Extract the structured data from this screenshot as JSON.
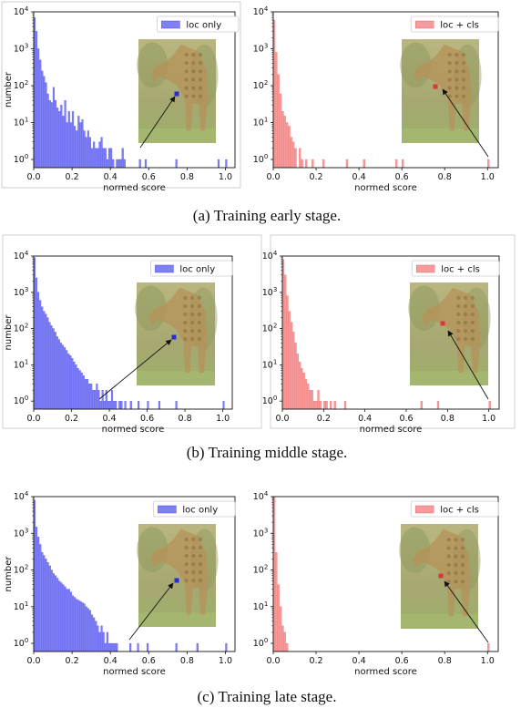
{
  "captions": [
    "(a) Training early stage.",
    "(b) Training middle stage.",
    "(c) Training late stage."
  ],
  "colors": {
    "loc_only": "#6a6af5",
    "loc_cls": "#f58a8a",
    "loc_only_edge": "#4b4bea",
    "loc_cls_edge": "#ee6a6a"
  },
  "chart_data": [
    {
      "type": "bar",
      "stage": "early",
      "legend": "loc only",
      "color": "#6a6af5",
      "xlabel": "normed score",
      "ylabel": "number",
      "xlim": [
        0,
        1.05
      ],
      "ylim": [
        0.6,
        10000
      ],
      "yscale": "log",
      "x_ticks": [
        "0.0",
        "0.2",
        "0.4",
        "0.6",
        "0.8",
        "1.0"
      ],
      "y_ticks": [
        "10^0",
        "10^1",
        "10^2",
        "10^3",
        "10^4"
      ],
      "bin_width": 0.01,
      "counts": [
        7000,
        3000,
        1000,
        500,
        250,
        180,
        120,
        60,
        40,
        35,
        90,
        40,
        25,
        20,
        30,
        15,
        40,
        10,
        20,
        10,
        20,
        8,
        6,
        15,
        10,
        12,
        6,
        4,
        6,
        4,
        2,
        3,
        2,
        2,
        3,
        4,
        2,
        2,
        1,
        2,
        2,
        1,
        0,
        1,
        1,
        1,
        2,
        1,
        0,
        0,
        0,
        0,
        0,
        0,
        0,
        1,
        0,
        0,
        1,
        0,
        0,
        0,
        0,
        0,
        0,
        0,
        0,
        0,
        0,
        0,
        0,
        0,
        0,
        0,
        1,
        0,
        0,
        0,
        0,
        0,
        0,
        0,
        0,
        0,
        0,
        0,
        0,
        0,
        0,
        0,
        0,
        0,
        0,
        0,
        0,
        0,
        1,
        0,
        0,
        0,
        1
      ]
    },
    {
      "type": "bar",
      "stage": "early",
      "legend": "loc + cls",
      "color": "#f58a8a",
      "xlabel": "normed score",
      "ylabel": "",
      "xlim": [
        0,
        1.05
      ],
      "ylim": [
        0.6,
        10000
      ],
      "yscale": "log",
      "x_ticks": [
        "0.0",
        "0.2",
        "0.4",
        "0.6",
        "0.8",
        "1.0"
      ],
      "y_ticks": [
        "10^0",
        "10^1",
        "10^2",
        "10^3",
        "10^4"
      ],
      "bin_width": 0.01,
      "counts": [
        6000,
        800,
        200,
        60,
        20,
        15,
        10,
        8,
        4,
        3,
        2,
        0,
        2,
        1,
        0,
        1,
        0,
        0,
        1,
        0,
        0,
        0,
        0,
        1,
        0,
        0,
        0,
        0,
        0,
        0,
        0,
        0,
        0,
        0,
        1,
        0,
        0,
        0,
        0,
        0,
        0,
        0,
        1,
        0,
        0,
        0,
        0,
        0,
        0,
        0,
        0,
        0,
        0,
        0,
        0,
        0,
        0,
        1,
        0,
        0,
        1,
        0,
        0,
        0,
        0,
        0,
        0,
        0,
        0,
        0,
        0,
        0,
        0,
        0,
        0,
        0,
        0,
        0,
        0,
        0,
        0,
        0,
        0,
        0,
        0,
        0,
        0,
        0,
        0,
        0,
        0,
        0,
        0,
        0,
        0,
        0,
        0,
        0,
        0,
        0,
        1
      ]
    },
    {
      "type": "bar",
      "stage": "middle",
      "legend": "loc only",
      "color": "#6a6af5",
      "xlabel": "normed score",
      "ylabel": "number",
      "xlim": [
        0,
        1.05
      ],
      "ylim": [
        0.6,
        10000
      ],
      "yscale": "log",
      "x_ticks": [
        "0.0",
        "0.2",
        "0.4",
        "0.6",
        "0.8",
        "1.0"
      ],
      "y_ticks": [
        "10^0",
        "10^1",
        "10^2",
        "10^3",
        "10^4"
      ],
      "bin_width": 0.01,
      "counts": [
        9000,
        2500,
        1000,
        600,
        400,
        300,
        250,
        200,
        150,
        120,
        100,
        80,
        60,
        50,
        40,
        35,
        30,
        25,
        20,
        18,
        15,
        12,
        10,
        8,
        7,
        6,
        5,
        4,
        4,
        3,
        3,
        2,
        2,
        3,
        2,
        1,
        2,
        1,
        2,
        1,
        1,
        2,
        1,
        1,
        0,
        1,
        1,
        0,
        1,
        0,
        0,
        1,
        0,
        0,
        0,
        1,
        0,
        0,
        0,
        0,
        1,
        0,
        0,
        0,
        0,
        0,
        1,
        0,
        0,
        0,
        0,
        0,
        0,
        0,
        0,
        1,
        0,
        0,
        0,
        0,
        0,
        0,
        0,
        0,
        0,
        0,
        0,
        0,
        0,
        0,
        0,
        0,
        0,
        0,
        0,
        0,
        0,
        0,
        0,
        0,
        1
      ]
    },
    {
      "type": "bar",
      "stage": "middle",
      "legend": "loc + cls",
      "color": "#f58a8a",
      "xlabel": "normed score",
      "ylabel": "",
      "xlim": [
        0,
        1.05
      ],
      "ylim": [
        0.6,
        10000
      ],
      "yscale": "log",
      "x_ticks": [
        "0.0",
        "0.2",
        "0.4",
        "0.6",
        "0.8",
        "1.0"
      ],
      "y_ticks": [
        "10^0",
        "10^1",
        "10^2",
        "10^3",
        "10^4"
      ],
      "bin_width": 0.01,
      "counts": [
        8000,
        3000,
        800,
        300,
        150,
        80,
        40,
        20,
        12,
        8,
        6,
        4,
        3,
        2,
        2,
        1,
        1,
        2,
        1,
        0,
        1,
        1,
        0,
        1,
        0,
        1,
        0,
        0,
        0,
        0,
        1,
        0,
        0,
        0,
        0,
        0,
        0,
        0,
        0,
        0,
        0,
        0,
        0,
        0,
        0,
        0,
        0,
        0,
        0,
        0,
        0,
        0,
        0,
        0,
        0,
        0,
        0,
        0,
        0,
        0,
        0,
        0,
        0,
        0,
        0,
        0,
        0,
        1,
        0,
        0,
        0,
        0,
        0,
        0,
        0,
        1,
        0,
        0,
        0,
        0,
        0,
        0,
        0,
        0,
        0,
        0,
        0,
        0,
        0,
        0,
        0,
        0,
        0,
        0,
        0,
        0,
        0,
        0,
        0,
        0,
        1
      ]
    },
    {
      "type": "bar",
      "stage": "late",
      "legend": "loc only",
      "color": "#6a6af5",
      "xlabel": "normed score",
      "ylabel": "number",
      "xlim": [
        0,
        1.05
      ],
      "ylim": [
        0.6,
        10000
      ],
      "yscale": "log",
      "x_ticks": [
        "0.0",
        "0.2",
        "0.4",
        "0.6",
        "0.8",
        "1.0"
      ],
      "y_ticks": [
        "10^0",
        "10^1",
        "10^2",
        "10^3",
        "10^4"
      ],
      "bin_width": 0.01,
      "counts": [
        8000,
        1500,
        800,
        500,
        300,
        250,
        200,
        160,
        130,
        100,
        80,
        70,
        60,
        50,
        45,
        40,
        35,
        30,
        30,
        25,
        20,
        18,
        16,
        15,
        14,
        13,
        12,
        10,
        9,
        8,
        6,
        5,
        4,
        3,
        2,
        3,
        2,
        1,
        2,
        1,
        1,
        1,
        1,
        1,
        0,
        0,
        0,
        0,
        0,
        0,
        1,
        0,
        0,
        0,
        1,
        0,
        0,
        0,
        0,
        1,
        0,
        0,
        0,
        0,
        0,
        0,
        0,
        0,
        0,
        0,
        0,
        0,
        0,
        0,
        1,
        0,
        0,
        0,
        0,
        0,
        0,
        0,
        0,
        0,
        0,
        1,
        0,
        0,
        0,
        0,
        0,
        0,
        0,
        0,
        0,
        0,
        0,
        0,
        0,
        0,
        1
      ]
    },
    {
      "type": "bar",
      "stage": "late",
      "legend": "loc + cls",
      "color": "#f58a8a",
      "xlabel": "normed score",
      "ylabel": "",
      "xlim": [
        0,
        1.05
      ],
      "ylim": [
        0.6,
        10000
      ],
      "yscale": "log",
      "x_ticks": [
        "0.0",
        "0.2",
        "0.4",
        "0.6",
        "0.8",
        "1.0"
      ],
      "y_ticks": [
        "10^0",
        "10^1",
        "10^2",
        "10^3",
        "10^4"
      ],
      "bin_width": 0.01,
      "counts": [
        9500,
        300,
        40,
        10,
        3,
        2,
        1,
        0,
        0,
        0,
        0,
        0,
        0,
        0,
        0,
        0,
        0,
        0,
        0,
        0,
        0,
        0,
        0,
        0,
        0,
        0,
        0,
        0,
        0,
        0,
        0,
        0,
        0,
        0,
        0,
        0,
        0,
        0,
        0,
        0,
        0,
        0,
        0,
        0,
        0,
        0,
        0,
        0,
        0,
        0,
        0,
        0,
        0,
        0,
        0,
        0,
        0,
        0,
        0,
        0,
        0,
        0,
        0,
        0,
        0,
        0,
        0,
        0,
        0,
        0,
        0,
        0,
        0,
        0,
        0,
        0,
        0,
        0,
        0,
        0,
        0,
        0,
        0,
        0,
        0,
        0,
        0,
        0,
        0,
        0,
        0,
        0,
        0,
        0,
        0,
        0,
        0,
        0,
        0,
        0,
        1
      ]
    }
  ]
}
